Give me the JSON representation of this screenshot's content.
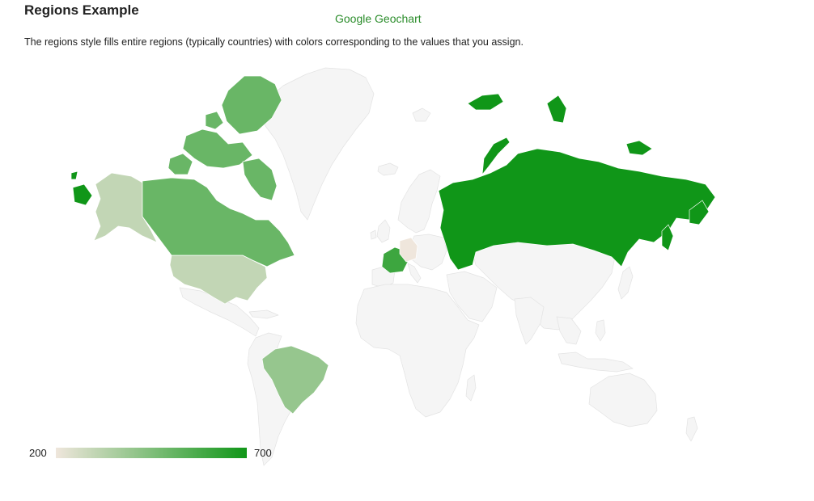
{
  "header": {
    "title": "Regions Example",
    "link_label": "Google Geochart",
    "description": "The regions style fills entire regions (typically countries) with colors corresponding to the values that you assign."
  },
  "map": {
    "style": "regions",
    "no_data_color": "#f5f5f5",
    "color_axis": {
      "min": 200,
      "max": 700,
      "min_label": "200",
      "max_label": "700",
      "colors": [
        "#efe6dc",
        "#109618"
      ]
    },
    "regions": [
      {
        "id": "RU",
        "value": 700
      },
      {
        "id": "CA",
        "value": 500
      },
      {
        "id": "FR",
        "value": 600
      },
      {
        "id": "BR",
        "value": 400
      },
      {
        "id": "US",
        "value": 300
      },
      {
        "id": "DE",
        "value": 200
      }
    ]
  }
}
